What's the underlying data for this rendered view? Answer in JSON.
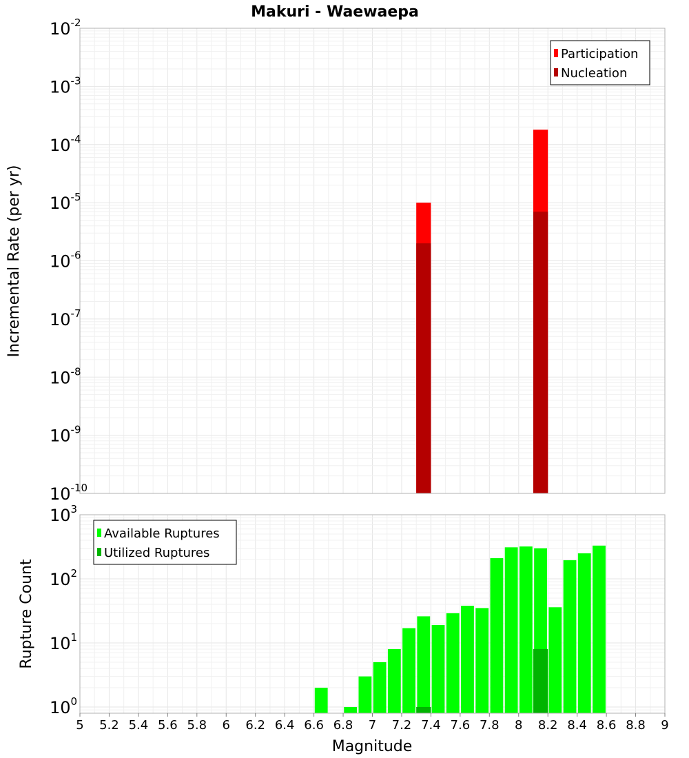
{
  "chart_data": [
    {
      "type": "bar",
      "title": "Makuri - Waewaepa",
      "ylabel": "Incremental Rate (per yr)",
      "yscale": "log",
      "ylim": [
        1e-10,
        0.01
      ],
      "xlim": [
        5,
        9
      ],
      "grid": true,
      "legend_placement": "top-right",
      "y_tick_labels": [
        {
          "base": "10",
          "exp": "-10"
        },
        {
          "base": "10",
          "exp": "-9"
        },
        {
          "base": "10",
          "exp": "-8"
        },
        {
          "base": "10",
          "exp": "-7"
        },
        {
          "base": "10",
          "exp": "-6"
        },
        {
          "base": "10",
          "exp": "-5"
        },
        {
          "base": "10",
          "exp": "-4"
        },
        {
          "base": "10",
          "exp": "-3"
        },
        {
          "base": "10",
          "exp": "-2"
        }
      ],
      "bin_width": 0.1,
      "series": [
        {
          "name": "Participation",
          "color": "#ff0000",
          "x": [
            7.35,
            8.15
          ],
          "values": [
            1e-05,
            0.00018
          ]
        },
        {
          "name": "Nucleation",
          "color": "#b40000",
          "x": [
            7.35,
            8.15
          ],
          "values": [
            2e-06,
            7e-06
          ]
        }
      ]
    },
    {
      "type": "bar",
      "ylabel": "Rupture Count",
      "xlabel": "Magnitude",
      "yscale": "log",
      "ylim": [
        0.8,
        1000
      ],
      "xlim": [
        5,
        9
      ],
      "grid": true,
      "legend_placement": "top-left",
      "x_tick_labels": [
        "5",
        "5.2",
        "5.4",
        "5.6",
        "5.8",
        "6",
        "6.2",
        "6.4",
        "6.6",
        "6.8",
        "7",
        "7.2",
        "7.4",
        "7.6",
        "7.8",
        "8",
        "8.2",
        "8.4",
        "8.6",
        "8.8",
        "9"
      ],
      "y_tick_labels": [
        {
          "base": "10",
          "exp": "0"
        },
        {
          "base": "10",
          "exp": "1"
        },
        {
          "base": "10",
          "exp": "2"
        },
        {
          "base": "10",
          "exp": "3"
        }
      ],
      "bin_width": 0.1,
      "series": [
        {
          "name": "Available Ruptures",
          "color": "#00ff00",
          "x": [
            6.65,
            6.85,
            6.95,
            7.05,
            7.15,
            7.25,
            7.35,
            7.45,
            7.55,
            7.65,
            7.75,
            7.85,
            7.95,
            8.05,
            8.15,
            8.25,
            8.35,
            8.45,
            8.55
          ],
          "values": [
            2,
            1,
            3,
            5,
            8,
            17,
            26,
            19,
            29,
            38,
            35,
            210,
            310,
            320,
            300,
            36,
            195,
            250,
            330
          ]
        },
        {
          "name": "Utilized Ruptures",
          "color": "#00b400",
          "x": [
            7.35,
            8.15
          ],
          "values": [
            1,
            8
          ]
        }
      ]
    }
  ]
}
